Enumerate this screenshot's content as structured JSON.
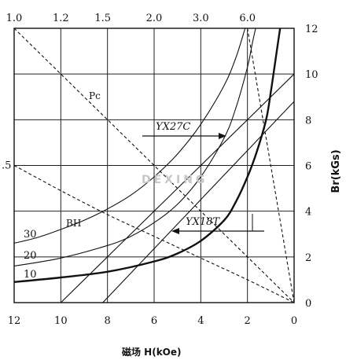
{
  "chart_data": {
    "type": "line",
    "x_axis": {
      "label": "磁场 H(kOe)",
      "range": [
        12,
        0
      ],
      "ticks": [
        "12",
        "10",
        "8",
        "6",
        "4",
        "2",
        "0"
      ]
    },
    "y_axis": {
      "label": "Br(kGs)",
      "range": [
        0,
        12
      ],
      "ticks": [
        "0",
        "2",
        "4",
        "6",
        "8",
        "10",
        "12"
      ]
    },
    "top_ticks": [
      {
        "label": "1.0",
        "h": 12
      },
      {
        "label": "1.2",
        "h": 10
      },
      {
        "label": "1.5",
        "h": 8.2
      },
      {
        "label": "2.0",
        "h": 6
      },
      {
        "label": "3.0",
        "h": 4
      },
      {
        "label": "6.0",
        "h": 2
      }
    ],
    "left_labels": [
      {
        "label": ".5",
        "b": 6
      }
    ],
    "grid": true,
    "watermark": "DEXING",
    "annotations": {
      "pc": "Pc",
      "bh": "BH",
      "bh_30": "30",
      "bh_20": "20",
      "bh_10": "10",
      "yx27c": "YX27C",
      "yx18t": "YX18T"
    },
    "series": [
      {
        "name": "YX18T",
        "style": "bold",
        "points": [
          [
            12,
            0.9
          ],
          [
            10,
            1.1
          ],
          [
            8,
            1.35
          ],
          [
            6,
            1.8
          ],
          [
            5,
            2.15
          ],
          [
            4,
            2.7
          ],
          [
            3,
            3.6
          ],
          [
            2.5,
            4.4
          ],
          [
            2,
            5.5
          ],
          [
            1.6,
            6.6
          ],
          [
            1.2,
            8.0
          ],
          [
            1.0,
            9.2
          ],
          [
            0.8,
            10.6
          ],
          [
            0.6,
            12
          ]
        ]
      },
      {
        "name": "",
        "style": "thin",
        "points": [
          [
            12,
            2.6
          ],
          [
            11,
            2.85
          ],
          [
            10,
            3.2
          ],
          [
            9,
            3.6
          ],
          [
            8,
            4.1
          ],
          [
            7,
            4.7
          ],
          [
            6,
            5.5
          ],
          [
            5,
            6.5
          ],
          [
            4,
            7.8
          ],
          [
            3,
            9.5
          ],
          [
            2.5,
            10.7
          ],
          [
            2.1,
            12
          ]
        ]
      },
      {
        "name": "",
        "style": "thin",
        "points": [
          [
            12,
            1.6
          ],
          [
            10,
            1.95
          ],
          [
            8,
            2.5
          ],
          [
            7,
            2.9
          ],
          [
            6,
            3.5
          ],
          [
            5,
            4.3
          ],
          [
            4,
            5.5
          ],
          [
            3,
            7.2
          ],
          [
            2.5,
            8.5
          ],
          [
            2.0,
            10.3
          ],
          [
            1.8,
            11.3
          ],
          [
            1.65,
            12
          ]
        ]
      },
      {
        "name": "",
        "style": "dashed",
        "points": [
          [
            12,
            6
          ],
          [
            10,
            4.9
          ],
          [
            8,
            3.85
          ],
          [
            6,
            2.9
          ],
          [
            4,
            1.95
          ],
          [
            2,
            1.0
          ],
          [
            0,
            0
          ]
        ]
      },
      {
        "name": "",
        "style": "dashed",
        "points": [
          [
            12,
            12
          ],
          [
            8,
            8
          ],
          [
            4,
            4
          ],
          [
            0,
            0
          ]
        ]
      },
      {
        "name": "",
        "style": "dashed",
        "points": [
          [
            2,
            12
          ],
          [
            1.5,
            9
          ],
          [
            1,
            6
          ],
          [
            0.5,
            3
          ],
          [
            0,
            0
          ]
        ]
      },
      {
        "name": "",
        "style": "thin",
        "points": [
          [
            10,
            0
          ],
          [
            0,
            10
          ]
        ]
      },
      {
        "name": "",
        "style": "thin",
        "points": [
          [
            8.2,
            0
          ],
          [
            0,
            8.8
          ]
        ]
      }
    ]
  }
}
